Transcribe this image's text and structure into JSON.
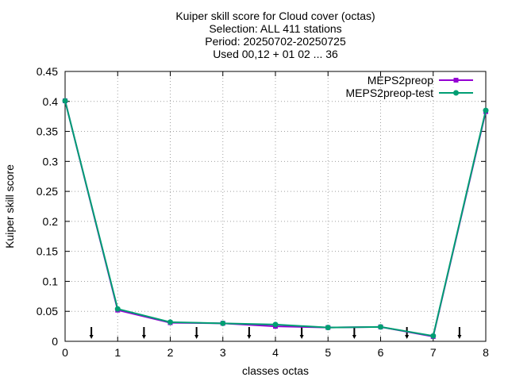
{
  "chart_data": {
    "type": "line",
    "title_lines": [
      "Kuiper skill score  for Cloud cover (octas)",
      "Selection: ALL    411 stations",
      "Period: 20250702-20250725",
      "Used 00,12 + 01 02 ... 36"
    ],
    "xlabel": "classes octas",
    "ylabel": "Kuiper skill score",
    "xlim": [
      0,
      8
    ],
    "ylim": [
      0,
      0.45
    ],
    "x_ticks": [
      0,
      1,
      2,
      3,
      4,
      5,
      6,
      7,
      8
    ],
    "y_ticks": [
      0,
      0.05,
      0.1,
      0.15,
      0.2,
      0.25,
      0.3,
      0.35,
      0.4,
      0.45
    ],
    "x_tick_labels": [
      "0",
      "1",
      "2",
      "3",
      "4",
      "5",
      "6",
      "7",
      "8"
    ],
    "y_tick_labels": [
      "0",
      "0.05",
      "0.1",
      "0.15",
      "0.2",
      "0.25",
      "0.3",
      "0.35",
      "0.4",
      "0.45"
    ],
    "grid": true,
    "legend_position": "top-right",
    "x": [
      0,
      1,
      2,
      3,
      4,
      5,
      6,
      7,
      8
    ],
    "series": [
      {
        "name": "MEPS2preop",
        "color": "#9400d3",
        "marker": "square",
        "values": [
          0.401,
          0.052,
          0.031,
          0.03,
          0.025,
          0.023,
          0.024,
          0.008,
          0.383
        ]
      },
      {
        "name": "MEPS2preop-test",
        "color": "#009e73",
        "marker": "circle",
        "values": [
          0.401,
          0.054,
          0.032,
          0.03,
          0.028,
          0.023,
          0.024,
          0.009,
          0.385
        ]
      }
    ],
    "arrow_x": [
      0.5,
      1.5,
      2.5,
      3.5,
      4.5,
      5.5,
      6.5,
      7.5
    ]
  }
}
